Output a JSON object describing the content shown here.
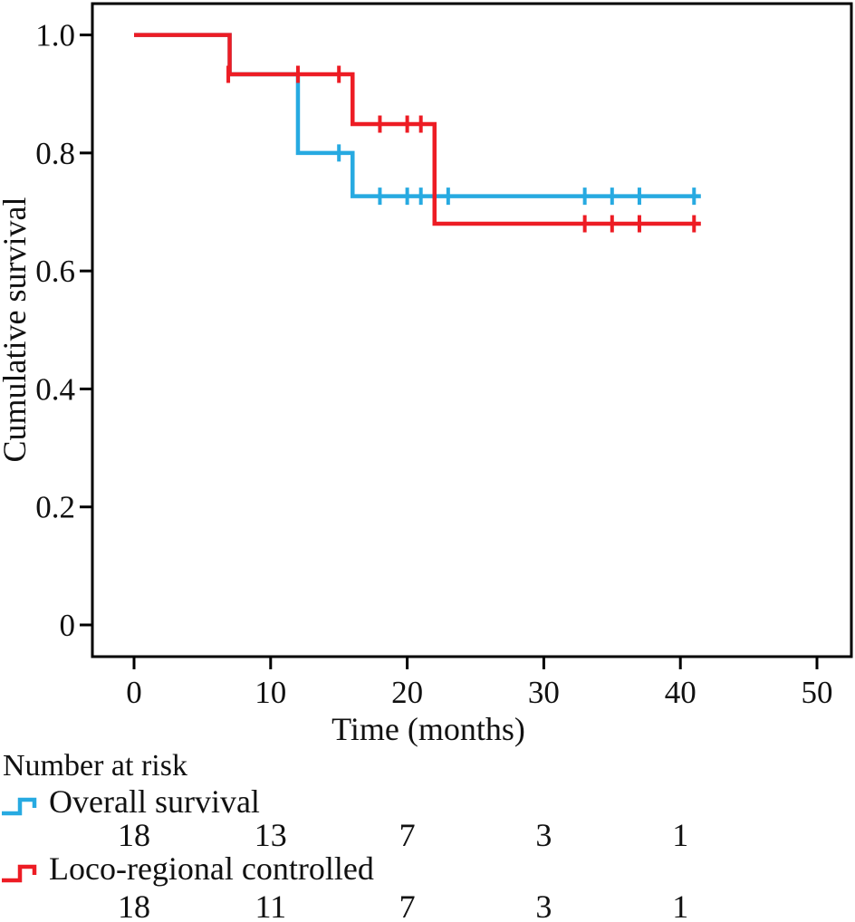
{
  "figure": {
    "background": "#ffffff",
    "text_color": "#111111"
  },
  "chart_data": {
    "type": "line",
    "subtype": "kaplan-meier-step",
    "title": "",
    "xlabel": "Time (months)",
    "ylabel": "Cumulative survival",
    "xlim": [
      0,
      52.5
    ],
    "ylim": [
      0,
      1.0
    ],
    "grid": false,
    "legend_position": "below",
    "x_ticks": [
      0,
      10,
      20,
      30,
      40,
      50
    ],
    "x_tick_labels": [
      "0",
      "10",
      "20",
      "30",
      "40",
      "50"
    ],
    "y_ticks": [
      1.0,
      0.8,
      0.6,
      0.4,
      0.2,
      0
    ],
    "y_tick_labels": [
      "1.0",
      "0.8",
      "0.6",
      "0.4",
      "0.2",
      "0"
    ],
    "series": [
      {
        "name": "Overall survival",
        "color": "#27AAE1",
        "steps": [
          [
            0,
            1.0
          ],
          [
            7,
            0.9333
          ],
          [
            12,
            0.8
          ],
          [
            16,
            0.7267
          ]
        ],
        "end_x": 41.5,
        "censors": [
          [
            15,
            0.8
          ],
          [
            18,
            0.7267
          ],
          [
            20,
            0.7267
          ],
          [
            21,
            0.7267
          ],
          [
            23,
            0.7267
          ],
          [
            33,
            0.7267
          ],
          [
            35,
            0.7267
          ],
          [
            37,
            0.7267
          ],
          [
            41,
            0.7267
          ]
        ]
      },
      {
        "name": "Loco-regional controlled",
        "color": "#ED1C24",
        "steps": [
          [
            0,
            1.0
          ],
          [
            7,
            0.9333
          ],
          [
            16,
            0.8489
          ],
          [
            22,
            0.68
          ]
        ],
        "end_x": 41.5,
        "censors": [
          [
            6.9,
            0.9333
          ],
          [
            12,
            0.9333
          ],
          [
            15,
            0.9333
          ],
          [
            18,
            0.8489
          ],
          [
            20,
            0.8489
          ],
          [
            21,
            0.8489
          ],
          [
            33,
            0.68
          ],
          [
            35,
            0.68
          ],
          [
            37,
            0.68
          ],
          [
            41,
            0.68
          ]
        ]
      }
    ]
  },
  "risk_table": {
    "heading": "Number at risk",
    "timepoints": [
      0,
      10,
      20,
      30,
      40
    ],
    "rows": [
      {
        "label": "Overall survival",
        "color": "#27AAE1",
        "counts": [
          "18",
          "13",
          "7",
          "3",
          "1"
        ]
      },
      {
        "label": "Loco-regional controlled",
        "color": "#ED1C24",
        "counts": [
          "18",
          "11",
          "7",
          "3",
          "1"
        ]
      }
    ]
  }
}
